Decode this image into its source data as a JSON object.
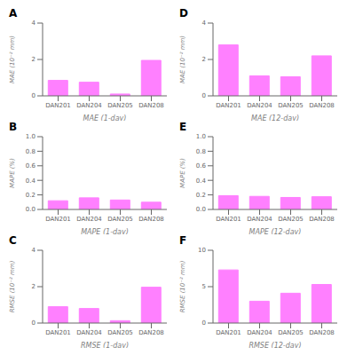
{
  "chart_data": [
    {
      "type": "bar",
      "title": "A",
      "xlabel": "MAE (1-day)",
      "ylabel": "MAE (10⁻² mm)",
      "categories": [
        "DAN201",
        "DAN204",
        "DAN205",
        "DAN208"
      ],
      "values": [
        0.85,
        0.75,
        0.1,
        1.95
      ],
      "color": "#FF80FF",
      "ylim": [
        0,
        4
      ],
      "yticks": [
        0,
        2,
        4
      ],
      "grid": false
    },
    {
      "type": "bar",
      "title": "B",
      "xlabel": "MAPE (1-day)",
      "ylabel": "MAPE (%)",
      "categories": [
        "DAN201",
        "DAN204",
        "DAN205",
        "DAN208"
      ],
      "values": [
        0.12,
        0.16,
        0.13,
        0.1
      ],
      "color": "#FF80FF",
      "ylim": [
        0,
        1.0
      ],
      "yticks": [
        {
          "value": 0,
          "label": "0.0"
        },
        0.2,
        0.4,
        0.6,
        0.8,
        {
          "value": 1,
          "label": "1.0"
        }
      ],
      "grid": false
    },
    {
      "type": "bar",
      "title": "C",
      "xlabel": "RMSE (1-day)",
      "ylabel": "RMSE (10⁻² mm)",
      "categories": [
        "DAN201",
        "DAN204",
        "DAN205",
        "DAN208"
      ],
      "values": [
        0.9,
        0.8,
        0.13,
        1.97
      ],
      "color": "#FF80FF",
      "ylim": [
        0,
        4
      ],
      "yticks": [
        0,
        2,
        4
      ],
      "grid": false
    },
    {
      "type": "bar",
      "title": "D",
      "xlabel": "MAE (12-day)",
      "ylabel": "MAE (10⁻² mm)",
      "categories": [
        "DAN201",
        "DAN204",
        "DAN205",
        "DAN208"
      ],
      "values": [
        2.8,
        1.1,
        1.05,
        2.2
      ],
      "color": "#FF80FF",
      "ylim": [
        0,
        4
      ],
      "yticks": [
        0,
        2,
        4
      ],
      "grid": false
    },
    {
      "type": "bar",
      "title": "E",
      "xlabel": "MAPE (12-day)",
      "ylabel": "MAPE (%)",
      "categories": [
        "DAN201",
        "DAN204",
        "DAN205",
        "DAN208"
      ],
      "values": [
        0.19,
        0.18,
        0.165,
        0.175
      ],
      "color": "#FF80FF",
      "ylim": [
        0,
        1.0
      ],
      "yticks": [
        {
          "value": 0,
          "label": "0.0"
        },
        0.2,
        0.4,
        0.6,
        0.8,
        {
          "value": 1,
          "label": "1.0"
        }
      ],
      "grid": false
    },
    {
      "type": "bar",
      "title": "F",
      "xlabel": "RMSE (12-day)",
      "ylabel": "RMSE (10⁻² mm)",
      "categories": [
        "DAN201",
        "DAN204",
        "DAN205",
        "DAN208"
      ],
      "values": [
        7.3,
        3.0,
        4.1,
        5.3
      ],
      "color": "#FF80FF",
      "ylim": [
        0,
        10
      ],
      "yticks": [
        0,
        5,
        10
      ],
      "grid": false
    }
  ]
}
